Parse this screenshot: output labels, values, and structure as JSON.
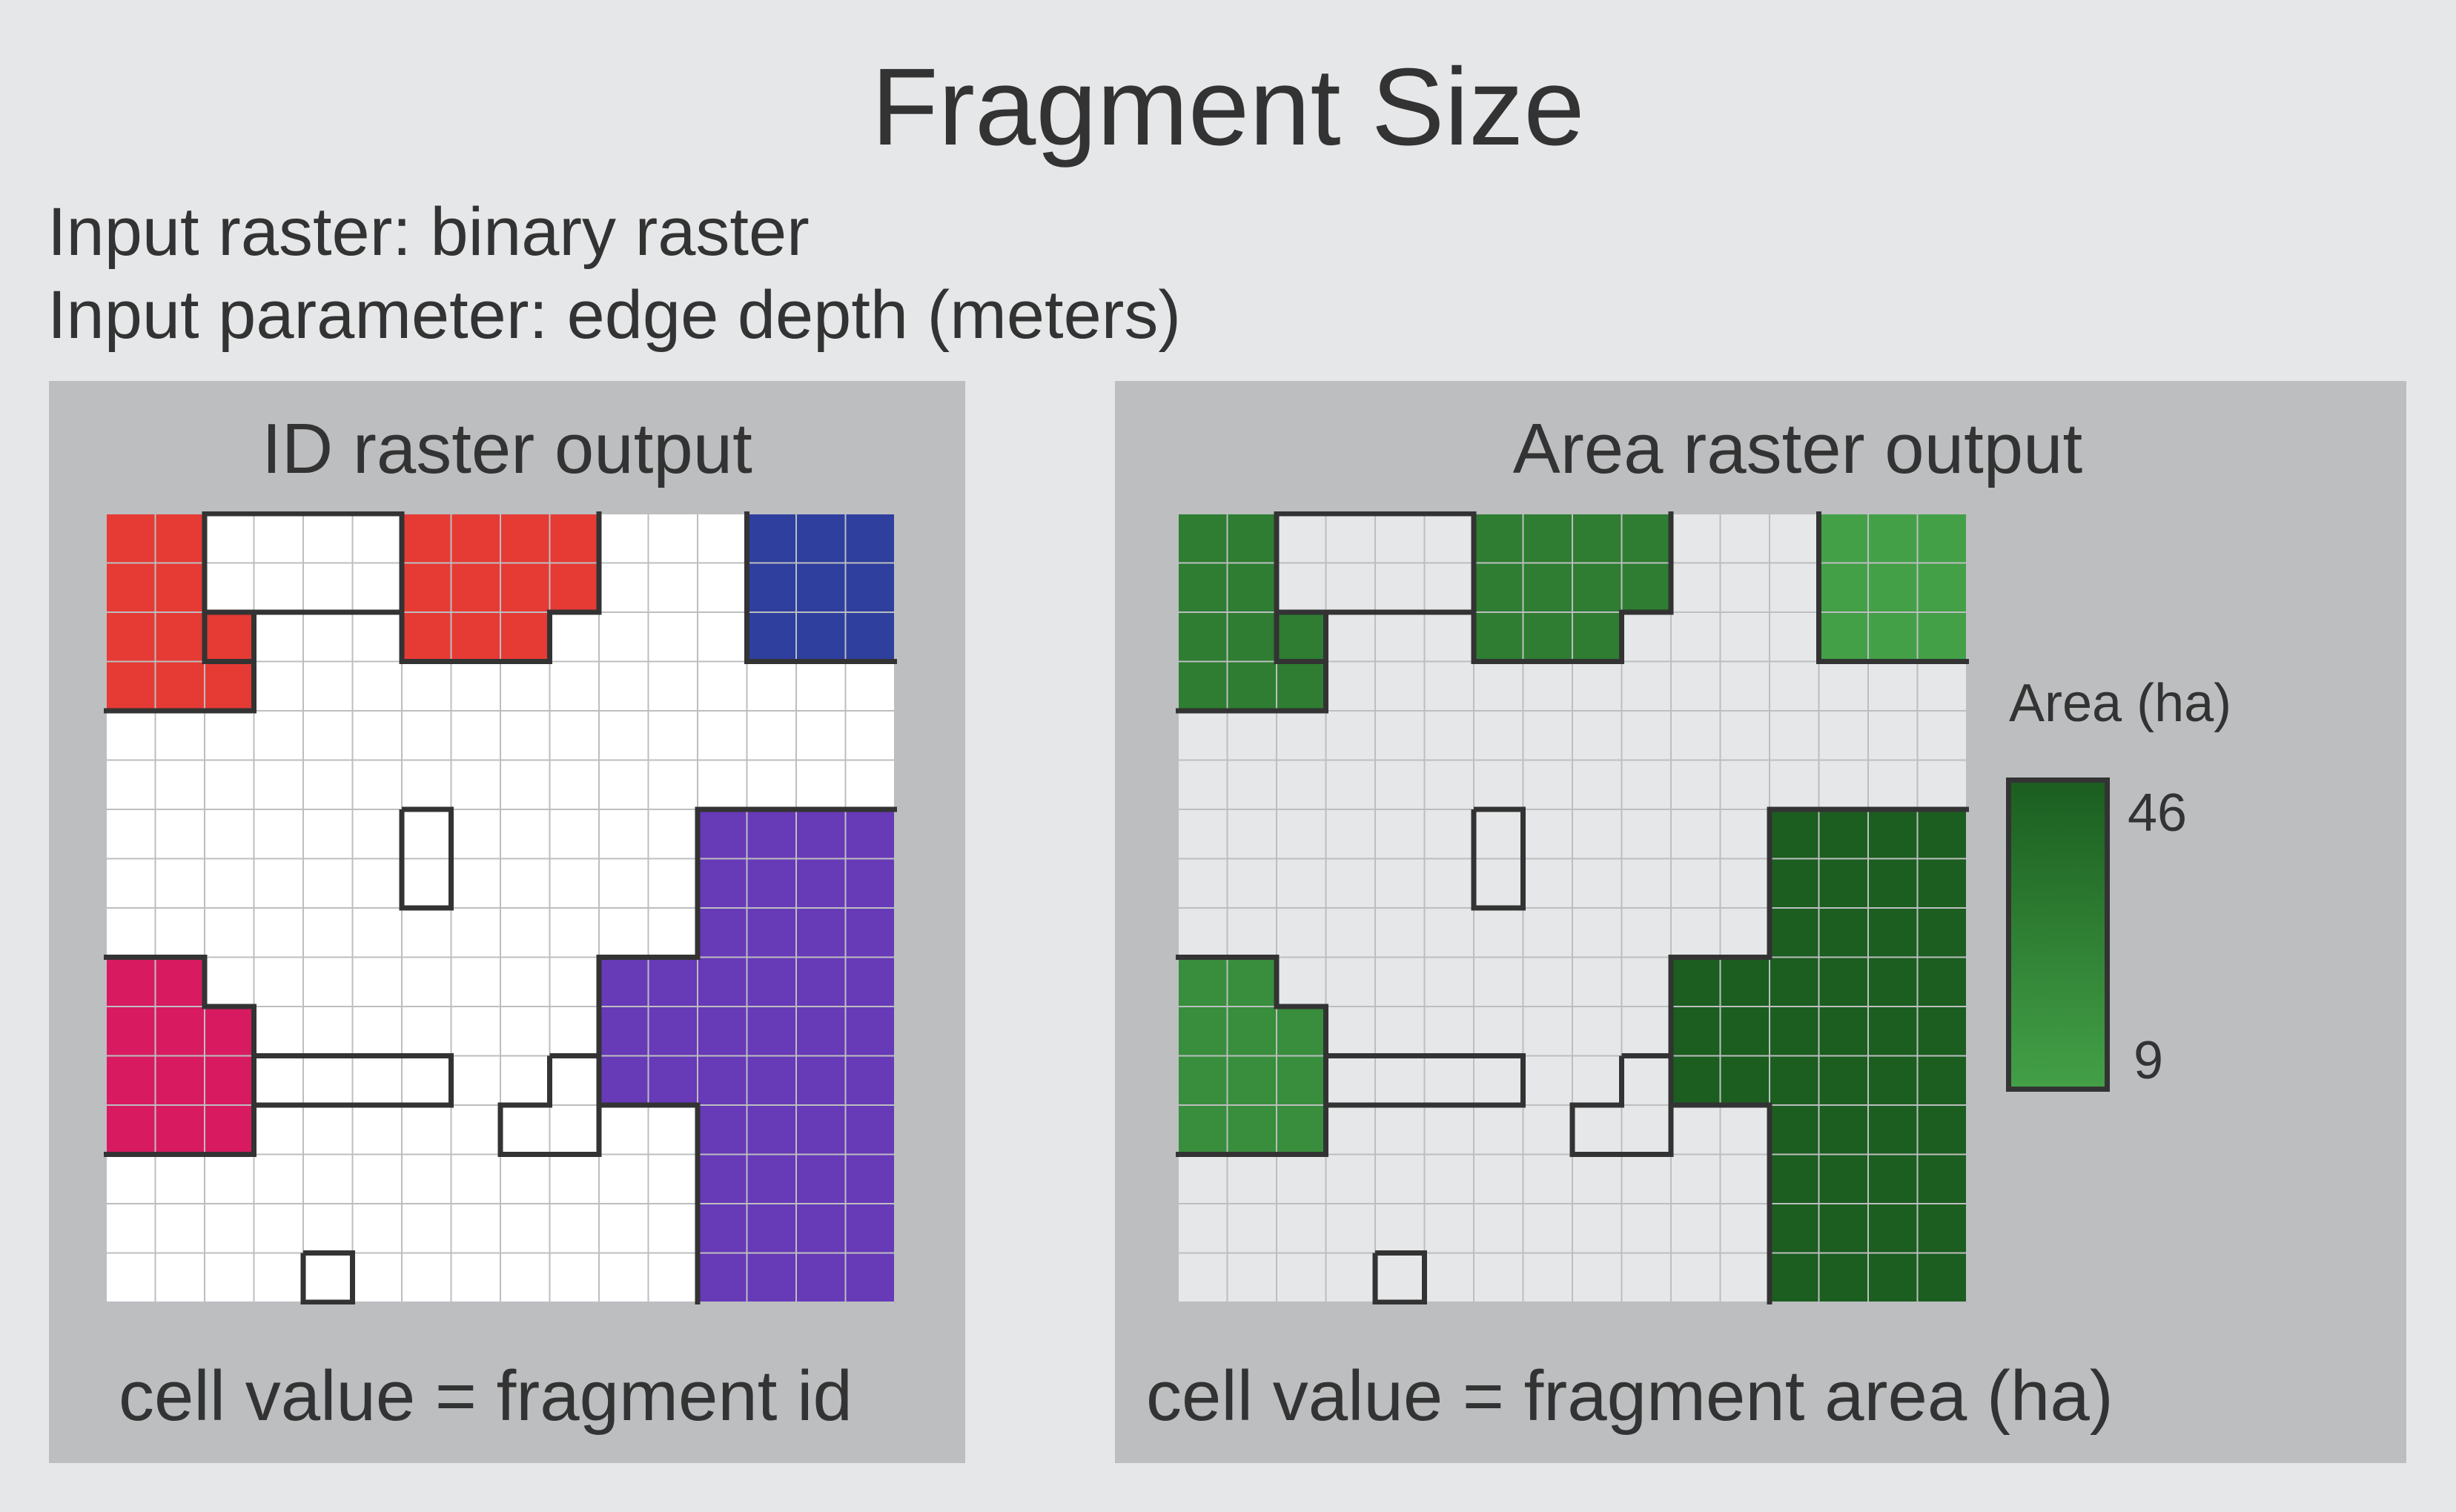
{
  "title": "Fragment Size",
  "inputs": {
    "raster": "Input raster: binary raster",
    "parameter": "Input parameter: edge depth (meters)"
  },
  "panels": {
    "id": {
      "title": "ID raster output",
      "caption": "cell value = fragment id",
      "background_color": "#ffffff",
      "grid_color": "#bcbec0",
      "fragments": [
        {
          "name": "fragment-red",
          "color": "#e63a35",
          "cells": [
            "0,0",
            "1,0",
            "0,1",
            "1,1",
            "0,2",
            "1,2",
            "2,2",
            "0,3",
            "1,3",
            "2,3",
            "6,0",
            "7,0",
            "8,0",
            "9,0",
            "6,1",
            "7,1",
            "8,1",
            "9,1",
            "6,2",
            "7,2",
            "8,2"
          ]
        },
        {
          "name": "fragment-blue",
          "color": "#2e3f9e",
          "cells": [
            "13,0",
            "14,0",
            "15,0",
            "13,1",
            "14,1",
            "15,1",
            "13,2",
            "14,2",
            "15,2"
          ]
        },
        {
          "name": "fragment-magenta",
          "color": "#d81b60",
          "cells": [
            "0,9",
            "1,9",
            "0,10",
            "1,10",
            "2,10",
            "0,11",
            "1,11",
            "2,11",
            "0,12",
            "1,12",
            "2,12"
          ]
        },
        {
          "name": "fragment-purple",
          "color": "#673ab7",
          "cells": [
            "12,6",
            "13,6",
            "14,6",
            "15,6",
            "12,7",
            "13,7",
            "14,7",
            "15,7",
            "12,8",
            "13,8",
            "14,8",
            "15,8",
            "10,9",
            "11,9",
            "12,9",
            "13,9",
            "14,9",
            "15,9",
            "10,10",
            "11,10",
            "12,10",
            "13,10",
            "14,10",
            "15,10",
            "10,11",
            "11,11",
            "12,11",
            "13,11",
            "14,11",
            "15,11",
            "12,12",
            "13,12",
            "14,12",
            "15,12",
            "12,13",
            "13,13",
            "14,13",
            "15,13",
            "12,14",
            "13,14",
            "14,14",
            "15,14",
            "12,15",
            "13,15",
            "14,15",
            "15,15"
          ]
        }
      ]
    },
    "area": {
      "title": "Area raster output",
      "caption": "cell value = fragment area (ha)",
      "background_color": "#e6e7e8",
      "grid_color": "#bcbec0",
      "fragments": [
        {
          "name": "fragment-area-topleft",
          "color": "#2e7d32",
          "cells": [
            "0,0",
            "1,0",
            "0,1",
            "1,1",
            "0,2",
            "1,2",
            "2,2",
            "0,3",
            "1,3",
            "2,3",
            "6,0",
            "7,0",
            "8,0",
            "9,0",
            "6,1",
            "7,1",
            "8,1",
            "9,1",
            "6,2",
            "7,2",
            "8,2"
          ]
        },
        {
          "name": "fragment-area-topright",
          "color": "#43a047",
          "cells": [
            "13,0",
            "14,0",
            "15,0",
            "13,1",
            "14,1",
            "15,1",
            "13,2",
            "14,2",
            "15,2"
          ]
        },
        {
          "name": "fragment-area-left",
          "color": "#388e3c",
          "cells": [
            "0,9",
            "1,9",
            "0,10",
            "1,10",
            "2,10",
            "0,11",
            "1,11",
            "2,11",
            "0,12",
            "1,12",
            "2,12"
          ]
        },
        {
          "name": "fragment-area-large",
          "color": "#1b5e20",
          "cells": [
            "12,6",
            "13,6",
            "14,6",
            "15,6",
            "12,7",
            "13,7",
            "14,7",
            "15,7",
            "12,8",
            "13,8",
            "14,8",
            "15,8",
            "10,9",
            "11,9",
            "12,9",
            "13,9",
            "14,9",
            "15,9",
            "10,10",
            "11,10",
            "12,10",
            "13,10",
            "14,10",
            "15,10",
            "10,11",
            "11,11",
            "12,11",
            "13,11",
            "14,11",
            "15,11",
            "12,12",
            "13,12",
            "14,12",
            "15,12",
            "12,13",
            "13,13",
            "14,13",
            "15,13",
            "12,14",
            "13,14",
            "14,14",
            "15,14",
            "12,15",
            "13,15",
            "14,15",
            "15,15"
          ]
        }
      ]
    }
  },
  "legend": {
    "title": "Area (ha)",
    "max_label": "46",
    "min_label": "9",
    "max_color": "#1b5e20",
    "min_color": "#43a047"
  },
  "outline_color": "#333333"
}
